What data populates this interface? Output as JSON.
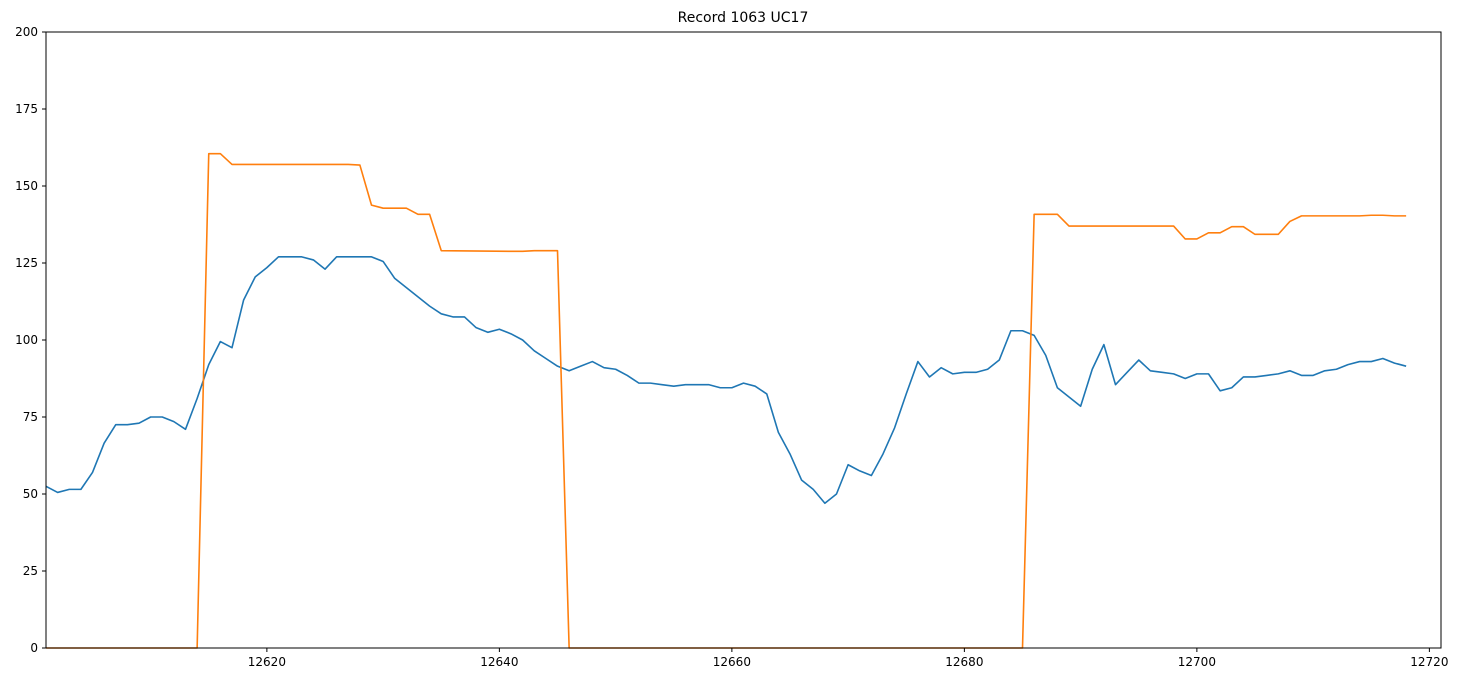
{
  "chart_data": {
    "type": "line",
    "title": "Record 1063 UC17",
    "xlabel": "",
    "ylabel": "",
    "xlim": [
      12601,
      12721
    ],
    "ylim": [
      0,
      200
    ],
    "x_ticks": [
      12620,
      12640,
      12660,
      12680,
      12700,
      12720
    ],
    "y_ticks": [
      0,
      25,
      50,
      75,
      100,
      125,
      150,
      175,
      200
    ],
    "grid": false,
    "legend": "none",
    "series": [
      {
        "color": "#1f77b4",
        "points": [
          [
            12601,
            52.5
          ],
          [
            12602,
            50.5
          ],
          [
            12603,
            51.5
          ],
          [
            12604,
            51.5
          ],
          [
            12605,
            57
          ],
          [
            12606,
            66.5
          ],
          [
            12607,
            72.5
          ],
          [
            12608,
            72.5
          ],
          [
            12609,
            73
          ],
          [
            12610,
            75
          ],
          [
            12611,
            75
          ],
          [
            12612,
            73.5
          ],
          [
            12613,
            71
          ],
          [
            12614,
            81
          ],
          [
            12615,
            92
          ],
          [
            12616,
            99.5
          ],
          [
            12617,
            97.5
          ],
          [
            12618,
            113
          ],
          [
            12619,
            120.5
          ],
          [
            12620,
            123.5
          ],
          [
            12621,
            127
          ],
          [
            12622,
            127
          ],
          [
            12623,
            127
          ],
          [
            12624,
            126
          ],
          [
            12625,
            123
          ],
          [
            12626,
            127
          ],
          [
            12627,
            127
          ],
          [
            12628,
            127
          ],
          [
            12629,
            127
          ],
          [
            12630,
            125.5
          ],
          [
            12631,
            120
          ],
          [
            12632,
            117
          ],
          [
            12633,
            114
          ],
          [
            12634,
            111
          ],
          [
            12635,
            108.5
          ],
          [
            12636,
            107.5
          ],
          [
            12637,
            107.5
          ],
          [
            12638,
            104
          ],
          [
            12639,
            102.5
          ],
          [
            12640,
            103.5
          ],
          [
            12641,
            102
          ],
          [
            12642,
            100
          ],
          [
            12643,
            96.5
          ],
          [
            12644,
            94
          ],
          [
            12645,
            91.5
          ],
          [
            12646,
            90
          ],
          [
            12647,
            91.5
          ],
          [
            12648,
            93
          ],
          [
            12649,
            91
          ],
          [
            12650,
            90.5
          ],
          [
            12651,
            88.5
          ],
          [
            12652,
            86
          ],
          [
            12653,
            86
          ],
          [
            12654,
            85.5
          ],
          [
            12655,
            85
          ],
          [
            12656,
            85.5
          ],
          [
            12657,
            85.5
          ],
          [
            12658,
            85.5
          ],
          [
            12659,
            84.5
          ],
          [
            12660,
            84.5
          ],
          [
            12661,
            86
          ],
          [
            12662,
            85
          ],
          [
            12663,
            82.5
          ],
          [
            12664,
            70
          ],
          [
            12665,
            63
          ],
          [
            12666,
            54.5
          ],
          [
            12667,
            51.5
          ],
          [
            12668,
            47
          ],
          [
            12669,
            50
          ],
          [
            12670,
            59.5
          ],
          [
            12671,
            57.5
          ],
          [
            12672,
            56
          ],
          [
            12673,
            63
          ],
          [
            12674,
            71.5
          ],
          [
            12675,
            82.5
          ],
          [
            12676,
            93
          ],
          [
            12677,
            88
          ],
          [
            12678,
            91
          ],
          [
            12679,
            89
          ],
          [
            12680,
            89.5
          ],
          [
            12681,
            89.5
          ],
          [
            12682,
            90.5
          ],
          [
            12683,
            93.5
          ],
          [
            12684,
            103
          ],
          [
            12685,
            103
          ],
          [
            12686,
            101.5
          ],
          [
            12687,
            95
          ],
          [
            12688,
            84.5
          ],
          [
            12689,
            81.5
          ],
          [
            12690,
            78.5
          ],
          [
            12691,
            90.5
          ],
          [
            12692,
            98.5
          ],
          [
            12693,
            85.5
          ],
          [
            12694,
            89.5
          ],
          [
            12695,
            93.5
          ],
          [
            12696,
            90
          ],
          [
            12697,
            89.5
          ],
          [
            12698,
            89
          ],
          [
            12699,
            87.5
          ],
          [
            12700,
            89
          ],
          [
            12701,
            89
          ],
          [
            12702,
            83.5
          ],
          [
            12703,
            84.5
          ],
          [
            12704,
            88
          ],
          [
            12705,
            88
          ],
          [
            12706,
            88.5
          ],
          [
            12707,
            89
          ],
          [
            12708,
            90
          ],
          [
            12709,
            88.5
          ],
          [
            12710,
            88.5
          ],
          [
            12711,
            90
          ],
          [
            12712,
            90.5
          ],
          [
            12713,
            92
          ],
          [
            12714,
            93
          ],
          [
            12715,
            93
          ],
          [
            12716,
            94
          ],
          [
            12717,
            92.5
          ],
          [
            12718,
            91.5
          ]
        ]
      },
      {
        "color": "#ff7f0e",
        "points": [
          [
            12601,
            0
          ],
          [
            12614,
            0
          ],
          [
            12615,
            160.5
          ],
          [
            12616,
            160.5
          ],
          [
            12617,
            157
          ],
          [
            12618,
            157
          ],
          [
            12627,
            157
          ],
          [
            12628,
            156.8
          ],
          [
            12629,
            143.8
          ],
          [
            12630,
            142.8
          ],
          [
            12632,
            142.8
          ],
          [
            12633,
            140.8
          ],
          [
            12634,
            140.8
          ],
          [
            12635,
            129
          ],
          [
            12641,
            128.8
          ],
          [
            12642,
            128.8
          ],
          [
            12643,
            129
          ],
          [
            12645,
            129
          ],
          [
            12646,
            0
          ],
          [
            12685,
            0
          ],
          [
            12686,
            140.8
          ],
          [
            12688,
            140.8
          ],
          [
            12689,
            137
          ],
          [
            12698,
            137
          ],
          [
            12699,
            132.8
          ],
          [
            12700,
            132.8
          ],
          [
            12701,
            134.8
          ],
          [
            12702,
            134.8
          ],
          [
            12703,
            136.8
          ],
          [
            12704,
            136.8
          ],
          [
            12705,
            134.3
          ],
          [
            12707,
            134.3
          ],
          [
            12708,
            138.5
          ],
          [
            12709,
            140.3
          ],
          [
            12714,
            140.3
          ],
          [
            12715,
            140.5
          ],
          [
            12716,
            140.5
          ],
          [
            12717,
            140.3
          ],
          [
            12718,
            140.3
          ]
        ]
      }
    ]
  }
}
